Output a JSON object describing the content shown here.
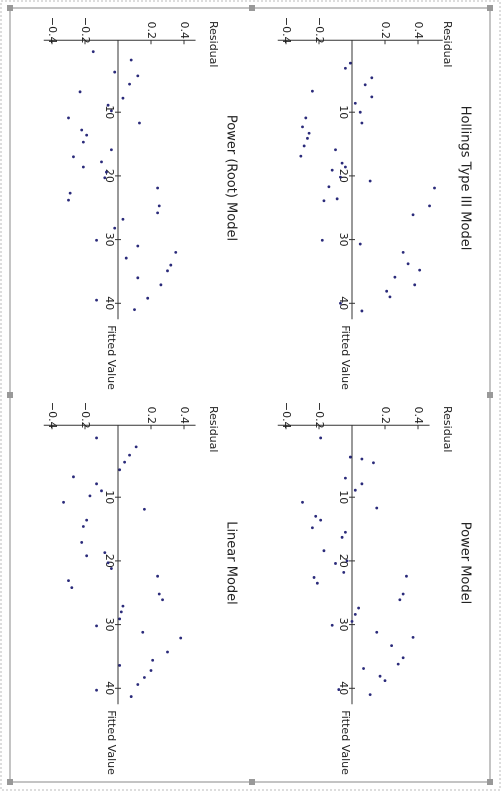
{
  "chart_data": [
    {
      "type": "scatter",
      "title": "Hollings Type III Model",
      "x_label": "Fitted Value",
      "y_label": "Residual",
      "color": "#2a2a7a",
      "x": [
        2.3,
        3.1,
        4.6,
        5.7,
        7.6,
        6.7,
        8.6,
        10.0,
        11.7,
        10.9,
        12.3,
        13.3,
        14.1,
        15.3,
        16.9,
        15.9,
        18.0,
        18.6,
        19.1,
        20.2,
        21.7,
        20.8,
        23.9,
        23.6,
        21.9,
        24.7,
        26.1,
        30.7,
        30.1,
        32.0,
        33.8,
        34.8,
        35.9,
        37.1,
        38.1,
        39.0,
        40.0,
        41.2
      ],
      "values": [
        -0.01,
        -0.04,
        0.12,
        0.08,
        0.12,
        -0.24,
        0.02,
        0.05,
        0.06,
        -0.28,
        -0.3,
        -0.26,
        -0.27,
        -0.29,
        -0.31,
        -0.1,
        -0.06,
        -0.04,
        -0.12,
        -0.07,
        -0.14,
        0.11,
        -0.17,
        -0.09,
        0.5,
        0.47,
        0.37,
        0.05,
        -0.18,
        0.31,
        0.34,
        0.41,
        0.26,
        0.38,
        0.21,
        0.23,
        -0.07,
        0.06
      ],
      "xlim": [
        -1.3,
        42.5
      ],
      "ylim": [
        -0.45,
        0.55
      ],
      "xticks": [
        10,
        20,
        30,
        40
      ],
      "yticks": [
        {
          "value": -0.4,
          "label": "−0.4"
        },
        {
          "value": -0.2,
          "label": "−0.2"
        },
        0.2,
        0.4
      ]
    },
    {
      "type": "scatter",
      "title": "Power Model",
      "x_label": "Fitted Value",
      "y_label": "Residual",
      "color": "#2a2a7a",
      "x": [
        0.7,
        3.7,
        4.0,
        4.6,
        7.0,
        7.9,
        8.9,
        10.8,
        11.7,
        13.0,
        13.6,
        14.8,
        15.5,
        16.3,
        18.4,
        20.0,
        20.4,
        21.8,
        22.4,
        22.6,
        23.5,
        25.2,
        26.1,
        27.4,
        28.4,
        29.5,
        30.1,
        31.2,
        32.0,
        33.3,
        35.2,
        36.2,
        36.9,
        38.1,
        38.8,
        40.2,
        41.0
      ],
      "values": [
        -0.19,
        -0.01,
        0.06,
        0.13,
        -0.04,
        0.06,
        0.02,
        -0.3,
        0.15,
        -0.22,
        -0.19,
        -0.24,
        -0.04,
        -0.06,
        -0.17,
        -0.03,
        -0.1,
        -0.05,
        0.33,
        -0.23,
        -0.21,
        0.31,
        0.29,
        0.04,
        0.02,
        0.0,
        -0.12,
        0.15,
        0.37,
        0.24,
        0.31,
        0.28,
        0.07,
        0.17,
        0.2,
        -0.08,
        0.11
      ],
      "xlim": [
        -1.3,
        42.5
      ],
      "ylim": [
        -0.45,
        0.47
      ],
      "xticks": [
        10,
        20,
        30,
        40
      ],
      "yticks": [
        {
          "value": -0.4,
          "label": "−0.4"
        },
        {
          "value": -0.2,
          "label": "−0.2"
        },
        0.2,
        0.4
      ]
    },
    {
      "type": "scatter",
      "title": "Power (Root) Model",
      "x_label": "Fitted Value",
      "y_label": "Residual",
      "color": "#2a2a7a",
      "x": [
        0.5,
        3.7,
        1.8,
        4.3,
        5.6,
        6.8,
        7.8,
        8.9,
        9.8,
        10.9,
        11.7,
        12.8,
        13.6,
        14.7,
        17.0,
        15.9,
        17.8,
        18.6,
        19.4,
        20.3,
        22.7,
        23.8,
        21.9,
        24.7,
        25.8,
        26.8,
        28.2,
        30.1,
        31.0,
        32.9,
        32.0,
        34.0,
        34.9,
        37.1,
        36.0,
        39.2,
        39.5,
        41.0
      ],
      "values": [
        -0.15,
        -0.02,
        0.08,
        0.12,
        0.07,
        -0.23,
        0.03,
        -0.06,
        -0.04,
        -0.3,
        0.13,
        -0.22,
        -0.19,
        -0.21,
        -0.27,
        -0.04,
        -0.1,
        -0.21,
        -0.07,
        -0.08,
        -0.29,
        -0.3,
        0.24,
        0.25,
        0.24,
        0.03,
        -0.02,
        -0.13,
        0.12,
        0.05,
        0.35,
        0.32,
        0.3,
        0.26,
        0.12,
        0.18,
        -0.13,
        0.1
      ],
      "xlim": [
        -1.3,
        42.5
      ],
      "ylim": [
        -0.45,
        0.47
      ],
      "xticks": [
        10,
        20,
        30,
        40
      ],
      "yticks": [
        {
          "value": -0.4,
          "label": "−0.4"
        },
        {
          "value": -0.2,
          "label": "−0.2"
        },
        0.2,
        0.4
      ]
    },
    {
      "type": "scatter",
      "title": "Linear Model",
      "x_label": "Fitted Value",
      "y_label": "Residual",
      "color": "#2a2a7a",
      "x": [
        0.7,
        2.1,
        3.4,
        4.5,
        5.7,
        6.8,
        7.9,
        9.8,
        9.0,
        10.8,
        11.9,
        13.6,
        14.6,
        17.1,
        19.2,
        18.7,
        20.3,
        21.2,
        23.1,
        24.2,
        22.4,
        25.2,
        26.1,
        27.1,
        28.0,
        29.1,
        30.2,
        31.2,
        32.1,
        34.3,
        35.6,
        36.4,
        37.2,
        38.3,
        39.4,
        40.3,
        41.3
      ],
      "values": [
        -0.13,
        0.11,
        0.07,
        0.04,
        0.01,
        -0.27,
        -0.13,
        -0.17,
        -0.1,
        -0.33,
        0.16,
        -0.19,
        -0.21,
        -0.22,
        -0.19,
        -0.08,
        -0.06,
        -0.04,
        -0.3,
        -0.28,
        0.24,
        0.25,
        0.27,
        0.03,
        0.02,
        0.01,
        -0.13,
        0.15,
        0.38,
        0.3,
        0.21,
        0.01,
        0.2,
        0.16,
        0.12,
        -0.13,
        0.08
      ],
      "xlim": [
        -1.3,
        42.5
      ],
      "ylim": [
        -0.45,
        0.47
      ],
      "xticks": [
        10,
        20,
        30,
        40
      ],
      "yticks": [
        {
          "value": -0.4,
          "label": "−0.4"
        },
        {
          "value": -0.2,
          "label": "−0.2"
        },
        0.2,
        0.4
      ]
    }
  ]
}
